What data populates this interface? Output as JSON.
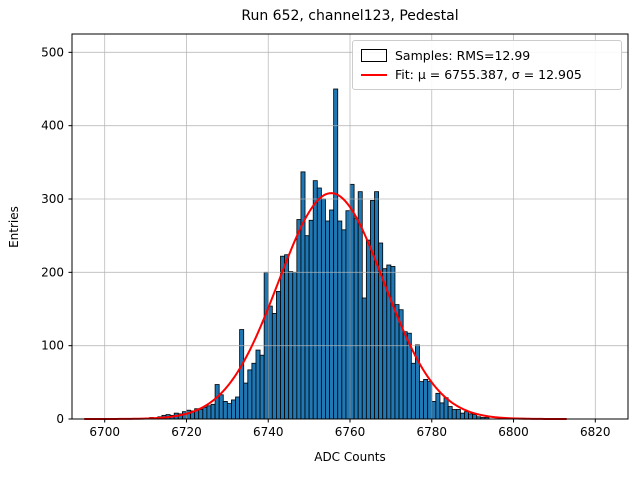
{
  "figure": {
    "title": "Run 652, channel123, Pedestal",
    "xlabel": "ADC Counts",
    "ylabel": "Entries"
  },
  "legend": {
    "samples_label": "Samples: RMS=12.99",
    "fit_label": "Fit: μ = 6755.387, σ = 12.905"
  },
  "chart_data": {
    "type": "bar",
    "subtype": "histogram",
    "title": "Run 652, channel123, Pedestal",
    "xlabel": "ADC Counts",
    "ylabel": "Entries",
    "grid": true,
    "legend_position": "upper right",
    "xlim": [
      6692,
      6828
    ],
    "ylim": [
      0,
      525
    ],
    "x_ticks": [
      6700,
      6720,
      6740,
      6760,
      6780,
      6800,
      6820
    ],
    "y_ticks": [
      0,
      100,
      200,
      300,
      400,
      500
    ],
    "bin_width": 1,
    "bins_start": 6710,
    "counts": [
      1,
      2,
      1,
      3,
      5,
      6,
      5,
      8,
      7,
      10,
      12,
      11,
      14,
      13,
      16,
      18,
      20,
      47,
      33,
      24,
      21,
      26,
      30,
      122,
      49,
      67,
      76,
      94,
      87,
      200,
      154,
      144,
      174,
      222,
      224,
      201,
      200,
      272,
      337,
      250,
      271,
      325,
      315,
      300,
      270,
      285,
      450,
      270,
      258,
      284,
      320,
      274,
      310,
      165,
      244,
      298,
      310,
      240,
      205,
      210,
      208,
      156,
      149,
      119,
      117,
      76,
      101,
      51,
      54,
      51,
      24,
      35,
      22,
      29,
      17,
      13,
      13,
      8,
      10,
      7,
      6,
      3,
      2,
      2,
      0,
      0,
      0,
      0,
      0,
      0,
      0,
      1,
      1
    ],
    "bar_color": "#1f77b4",
    "bar_edge_color": "#000000",
    "grid_color": "#b0b0b0",
    "fit": {
      "mu": 6755.387,
      "sigma": 12.905,
      "amplitude": 308,
      "x_start": 6695,
      "x_end": 6813,
      "color": "#ff0000",
      "line_width": 2
    }
  }
}
